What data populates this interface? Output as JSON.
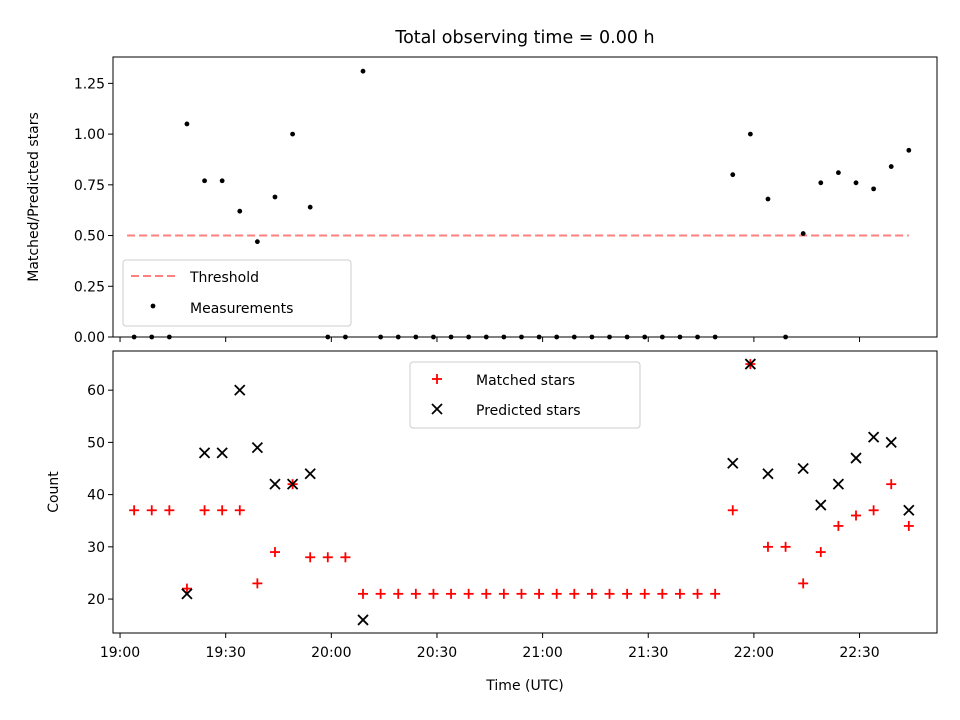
{
  "chart_data": [
    {
      "type": "scatter",
      "title": "Total observing time = 0.00 h",
      "xlabel": "",
      "ylabel": "Matched/Predicted stars",
      "ylim": [
        0,
        1.38
      ],
      "yticks": [
        "0.00",
        "0.25",
        "0.50",
        "0.75",
        "1.00",
        "1.25"
      ],
      "grid": false,
      "legend_position": "lower-left",
      "threshold": {
        "name": "Threshold",
        "value": 0.5,
        "x_range": [
          "19:02",
          "22:44"
        ],
        "color": "#ff7f7f"
      },
      "series": [
        {
          "name": "Measurements",
          "color": "#000000",
          "points": [
            [
              "19:04",
              0.0
            ],
            [
              "19:09",
              0.0
            ],
            [
              "19:14",
              0.0
            ],
            [
              "19:19",
              1.05
            ],
            [
              "19:24",
              0.77
            ],
            [
              "19:29",
              0.77
            ],
            [
              "19:34",
              0.62
            ],
            [
              "19:39",
              0.47
            ],
            [
              "19:44",
              0.69
            ],
            [
              "19:49",
              1.0
            ],
            [
              "19:54",
              0.64
            ],
            [
              "19:59",
              0.0
            ],
            [
              "20:04",
              0.0
            ],
            [
              "20:09",
              1.31
            ],
            [
              "20:14",
              0.0
            ],
            [
              "20:19",
              0.0
            ],
            [
              "20:24",
              0.0
            ],
            [
              "20:29",
              0.0
            ],
            [
              "20:34",
              0.0
            ],
            [
              "20:39",
              0.0
            ],
            [
              "20:44",
              0.0
            ],
            [
              "20:49",
              0.0
            ],
            [
              "20:54",
              0.0
            ],
            [
              "20:59",
              0.0
            ],
            [
              "21:04",
              0.0
            ],
            [
              "21:09",
              0.0
            ],
            [
              "21:14",
              0.0
            ],
            [
              "21:19",
              0.0
            ],
            [
              "21:24",
              0.0
            ],
            [
              "21:29",
              0.0
            ],
            [
              "21:34",
              0.0
            ],
            [
              "21:39",
              0.0
            ],
            [
              "21:44",
              0.0
            ],
            [
              "21:49",
              0.0
            ],
            [
              "21:54",
              0.8
            ],
            [
              "21:59",
              1.0
            ],
            [
              "22:04",
              0.68
            ],
            [
              "22:09",
              0.0
            ],
            [
              "22:14",
              0.51
            ],
            [
              "22:19",
              0.76
            ],
            [
              "22:24",
              0.81
            ],
            [
              "22:29",
              0.76
            ],
            [
              "22:34",
              0.73
            ],
            [
              "22:39",
              0.84
            ],
            [
              "22:44",
              0.92
            ]
          ]
        }
      ]
    },
    {
      "type": "scatter",
      "title": "",
      "xlabel": "Time (UTC)",
      "ylabel": "Count",
      "ylim": [
        13.5,
        67.5
      ],
      "yticks": [
        "20",
        "30",
        "40",
        "50",
        "60"
      ],
      "xlim": [
        "18:58",
        "22:52"
      ],
      "xticks": [
        "19:00",
        "19:30",
        "20:00",
        "20:30",
        "21:00",
        "21:30",
        "22:00",
        "22:30"
      ],
      "grid": false,
      "legend_position": "top-center",
      "series": [
        {
          "name": "Matched stars",
          "marker": "plus",
          "color": "#ff0000",
          "points": [
            [
              "19:04",
              37
            ],
            [
              "19:09",
              37
            ],
            [
              "19:14",
              37
            ],
            [
              "19:19",
              22
            ],
            [
              "19:24",
              37
            ],
            [
              "19:29",
              37
            ],
            [
              "19:34",
              37
            ],
            [
              "19:39",
              23
            ],
            [
              "19:44",
              29
            ],
            [
              "19:49",
              42
            ],
            [
              "19:54",
              28
            ],
            [
              "19:59",
              28
            ],
            [
              "20:04",
              28
            ],
            [
              "20:09",
              21
            ],
            [
              "20:14",
              21
            ],
            [
              "20:19",
              21
            ],
            [
              "20:24",
              21
            ],
            [
              "20:29",
              21
            ],
            [
              "20:34",
              21
            ],
            [
              "20:39",
              21
            ],
            [
              "20:44",
              21
            ],
            [
              "20:49",
              21
            ],
            [
              "20:54",
              21
            ],
            [
              "20:59",
              21
            ],
            [
              "21:04",
              21
            ],
            [
              "21:09",
              21
            ],
            [
              "21:14",
              21
            ],
            [
              "21:19",
              21
            ],
            [
              "21:24",
              21
            ],
            [
              "21:29",
              21
            ],
            [
              "21:34",
              21
            ],
            [
              "21:39",
              21
            ],
            [
              "21:44",
              21
            ],
            [
              "21:49",
              21
            ],
            [
              "21:54",
              37
            ],
            [
              "21:59",
              65
            ],
            [
              "22:04",
              30
            ],
            [
              "22:09",
              30
            ],
            [
              "22:14",
              23
            ],
            [
              "22:19",
              29
            ],
            [
              "22:24",
              34
            ],
            [
              "22:29",
              36
            ],
            [
              "22:34",
              37
            ],
            [
              "22:39",
              42
            ],
            [
              "22:44",
              34
            ]
          ]
        },
        {
          "name": "Predicted stars",
          "marker": "x",
          "color": "#000000",
          "points": [
            [
              "19:19",
              21
            ],
            [
              "19:24",
              48
            ],
            [
              "19:29",
              48
            ],
            [
              "19:34",
              60
            ],
            [
              "19:39",
              49
            ],
            [
              "19:44",
              42
            ],
            [
              "19:49",
              42
            ],
            [
              "19:54",
              44
            ],
            [
              "20:09",
              16
            ],
            [
              "21:54",
              46
            ],
            [
              "21:59",
              65
            ],
            [
              "22:04",
              44
            ],
            [
              "22:14",
              45
            ],
            [
              "22:19",
              38
            ],
            [
              "22:24",
              42
            ],
            [
              "22:29",
              47
            ],
            [
              "22:34",
              51
            ],
            [
              "22:39",
              50
            ],
            [
              "22:44",
              37
            ]
          ]
        }
      ]
    }
  ]
}
